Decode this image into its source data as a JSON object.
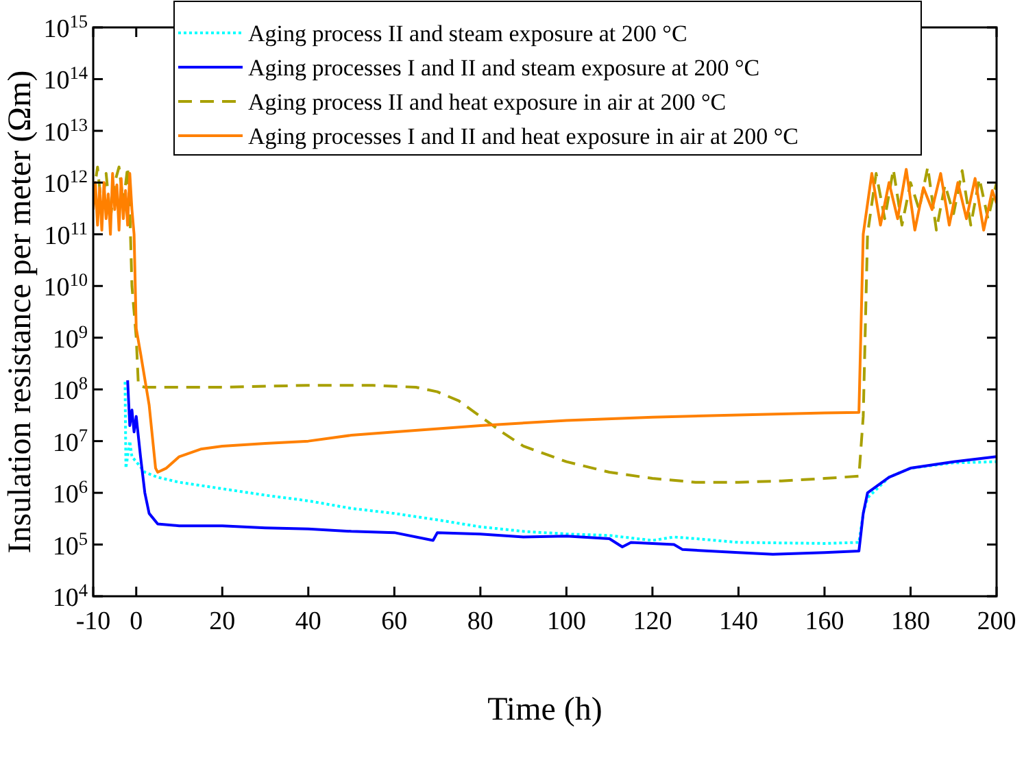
{
  "chart_data": {
    "type": "line",
    "xlabel": "Time (h)",
    "ylabel": "Insulation resistance per meter (Ωm)",
    "log": "y",
    "grid": false,
    "legend": "top",
    "xlim": [
      -10,
      200
    ],
    "xticks": [
      -10,
      0,
      20,
      40,
      60,
      80,
      100,
      120,
      140,
      160,
      180,
      200
    ],
    "ylim": [
      10000,
      1000000000000000
    ],
    "yticks": [
      {
        "value": 10000,
        "label": "10$^{4}$"
      },
      {
        "value": 100000,
        "label": "10$^{5}$"
      },
      {
        "value": 1000000,
        "label": "10$^{6}$"
      },
      {
        "value": 10000000,
        "label": "10$^{7}$"
      },
      {
        "value": 100000000,
        "label": "10$^{8}$"
      },
      {
        "value": 1000000000,
        "label": "10$^{9}$"
      },
      {
        "value": 10000000000,
        "label": "10$^{10}$"
      },
      {
        "value": 100000000000,
        "label": "10$^{11}$"
      },
      {
        "value": 1000000000000,
        "label": "10$^{12}$"
      },
      {
        "value": 10000000000000,
        "label": "10$^{13}$"
      },
      {
        "value": 100000000000000,
        "label": "10$^{14}$"
      },
      {
        "value": 1000000000000000,
        "label": "10$^{15}$"
      }
    ],
    "series": [
      {
        "name": "Aging process II and steam exposure at 200 °C",
        "color": "#00ffff",
        "line_style": "dotted",
        "x": [
          -2.6,
          -2.4,
          -1.5,
          -1,
          0,
          2,
          5,
          10,
          20,
          30,
          40,
          50,
          60,
          70,
          80,
          90,
          100,
          110,
          120,
          125,
          130,
          140,
          160,
          168,
          169,
          170,
          175,
          180,
          190,
          200
        ],
        "values": [
          140000000,
          3000000,
          10000000,
          5000000,
          4000000,
          2500000,
          2000000,
          1600000,
          1200000,
          900000,
          700000,
          500000,
          400000,
          300000,
          220000,
          180000,
          160000,
          150000,
          120000,
          140000,
          130000,
          110000,
          105000,
          110000,
          400000,
          800000,
          2000000,
          3000000,
          3800000,
          4000000
        ]
      },
      {
        "name": "Aging processes I and II and steam exposure at 200 °C",
        "color": "#0000ff",
        "line_style": "solid",
        "x": [
          -2,
          -1.5,
          -1,
          -0.5,
          0,
          1,
          2,
          3,
          5,
          10,
          20,
          30,
          40,
          50,
          60,
          69,
          70,
          80,
          90,
          100,
          110,
          113,
          115,
          125,
          127,
          140,
          148,
          160,
          168,
          169,
          170,
          175,
          180,
          190,
          200
        ],
        "values": [
          150000000,
          20000000,
          40000000,
          15000000,
          30000000,
          5000000,
          1000000,
          400000,
          250000,
          230000,
          230000,
          210000,
          200000,
          180000,
          170000,
          120000,
          170000,
          160000,
          140000,
          145000,
          130000,
          90000,
          110000,
          100000,
          80000,
          70000,
          65000,
          70000,
          75000,
          400000,
          1000000,
          2000000,
          3000000,
          4000000,
          5000000
        ]
      },
      {
        "name": "Aging process II and heat exposure in air at 200 °C",
        "color": "#a8a000",
        "line_style": "dashed",
        "x": [
          -10,
          -9,
          -8,
          -7,
          -6,
          -5,
          -4,
          -3,
          -2,
          -1.5,
          -1,
          0,
          0.5,
          2,
          20,
          40,
          55,
          65,
          70,
          75,
          80,
          85,
          90,
          100,
          110,
          120,
          130,
          140,
          150,
          160,
          168,
          169,
          170,
          172,
          174,
          176,
          178,
          180,
          182,
          184,
          186,
          188,
          190,
          192,
          194,
          196,
          198,
          200
        ],
        "values": [
          500000000000,
          2000000000000,
          300000000000,
          1500000000000,
          200000000000,
          1000000000000,
          2000000000000,
          400000000000,
          2000000000000,
          300000000000,
          10000000000,
          1000000000,
          120000000,
          110000000,
          110000000,
          120000000,
          120000000,
          110000000,
          90000000,
          60000000,
          30000000,
          15000000,
          8000000,
          4000000,
          2500000,
          1900000,
          1600000,
          1600000,
          1700000,
          1900000,
          2100000,
          30000000,
          100000000000,
          1500000000000,
          200000000000,
          1800000000000,
          150000000000,
          1000000000000,
          300000000000,
          2000000000000,
          120000000000,
          900000000000,
          250000000000,
          1700000000000,
          150000000000,
          1200000000000,
          200000000000,
          1000000000000
        ]
      },
      {
        "name": "Aging processes I and II and heat exposure in air at 200 °C",
        "color": "#ff8000",
        "line_style": "solid",
        "x": [
          -10,
          -9.5,
          -9,
          -8.5,
          -8,
          -7.5,
          -7,
          -6.5,
          -6,
          -5.5,
          -5,
          -4.5,
          -4,
          -3.5,
          -3,
          -2.5,
          -2,
          -1.5,
          -1,
          -0.5,
          0,
          1,
          3,
          4.5,
          5,
          7,
          10,
          15,
          20,
          30,
          40,
          50,
          60,
          80,
          100,
          120,
          140,
          160,
          168,
          169,
          171,
          173,
          175,
          177,
          179,
          181,
          183,
          185,
          187,
          189,
          191,
          193,
          195,
          197,
          199,
          200
        ],
        "values": [
          300000000000,
          1000000000000,
          150000000000,
          800000000000,
          120000000000,
          1000000000000,
          200000000000,
          600000000000,
          100000000000,
          1500000000000,
          300000000000,
          900000000000,
          120000000000,
          1200000000000,
          200000000000,
          700000000000,
          150000000000,
          1500000000000,
          300000000000,
          100000000000,
          1500000000,
          500000000,
          50000000,
          3000000,
          2500000,
          3000000,
          5000000,
          7000000,
          8000000,
          9000000,
          10000000,
          13000000,
          15000000,
          20000000,
          25000000,
          29000000,
          32000000,
          35000000,
          36000000,
          100000000000,
          1500000000000,
          150000000000,
          1000000000000,
          200000000000,
          1800000000000,
          120000000000,
          800000000000,
          300000000000,
          1500000000000,
          150000000000,
          1000000000000,
          200000000000,
          1200000000000,
          120000000000,
          700000000000,
          400000000000
        ]
      }
    ]
  }
}
